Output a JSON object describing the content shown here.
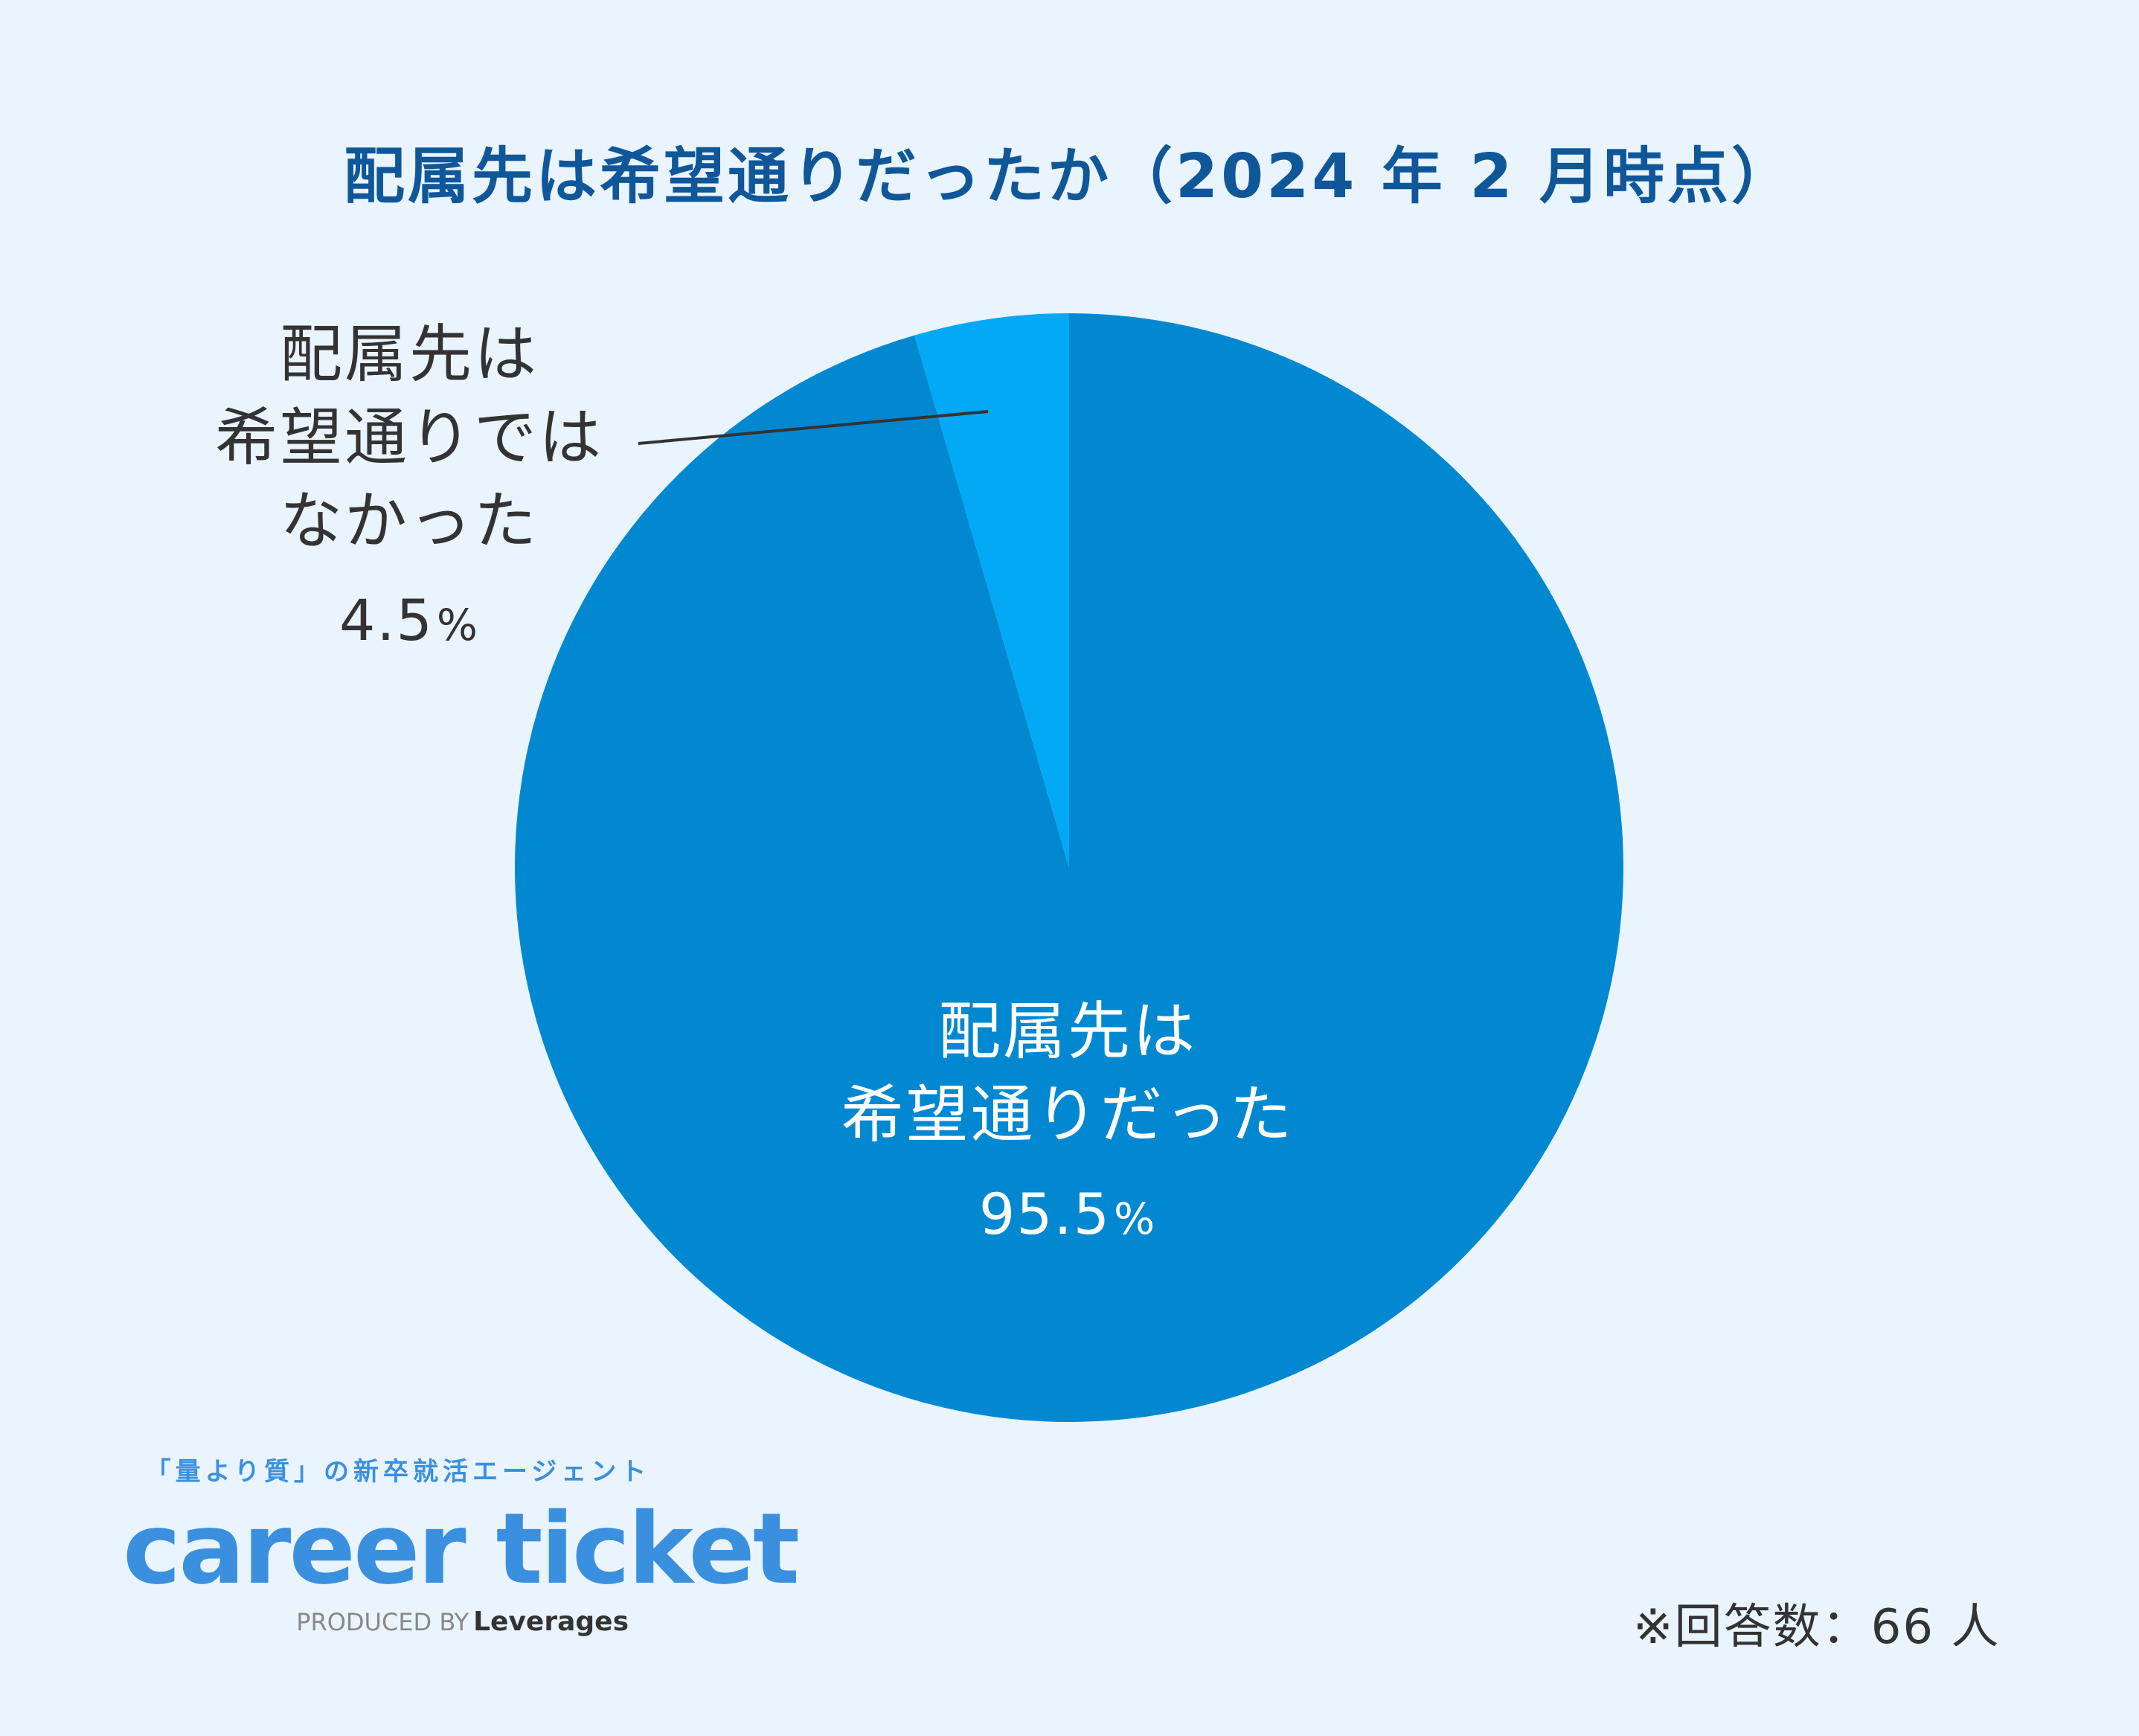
{
  "chart_data": {
    "type": "pie",
    "title": "配属先は希望通りだったか（2024 年 2 月時点）",
    "slices": [
      {
        "label_lines": [
          "配属先は",
          "希望通りだった"
        ],
        "value": 95.5,
        "value_label": "95.5",
        "unit": "%",
        "color": "#0288d1"
      },
      {
        "label_lines": [
          "配属先は",
          "希望通りでは",
          "なかった"
        ],
        "value": 4.5,
        "value_label": "4.5",
        "unit": "%",
        "color": "#03a9f4"
      }
    ],
    "start_angle_deg": 0,
    "direction": "clockwise",
    "note": "※回答数：66 人"
  },
  "branding": {
    "tagline": "「量より質」の新卒就活エージェント",
    "logo_text": "career ticket",
    "produced_by": "PRODUCED BY",
    "producer": "Leverages"
  },
  "colors": {
    "background": "#eaf4fe",
    "title": "#10579a",
    "brand": "#3a90de",
    "text": "#333333"
  }
}
